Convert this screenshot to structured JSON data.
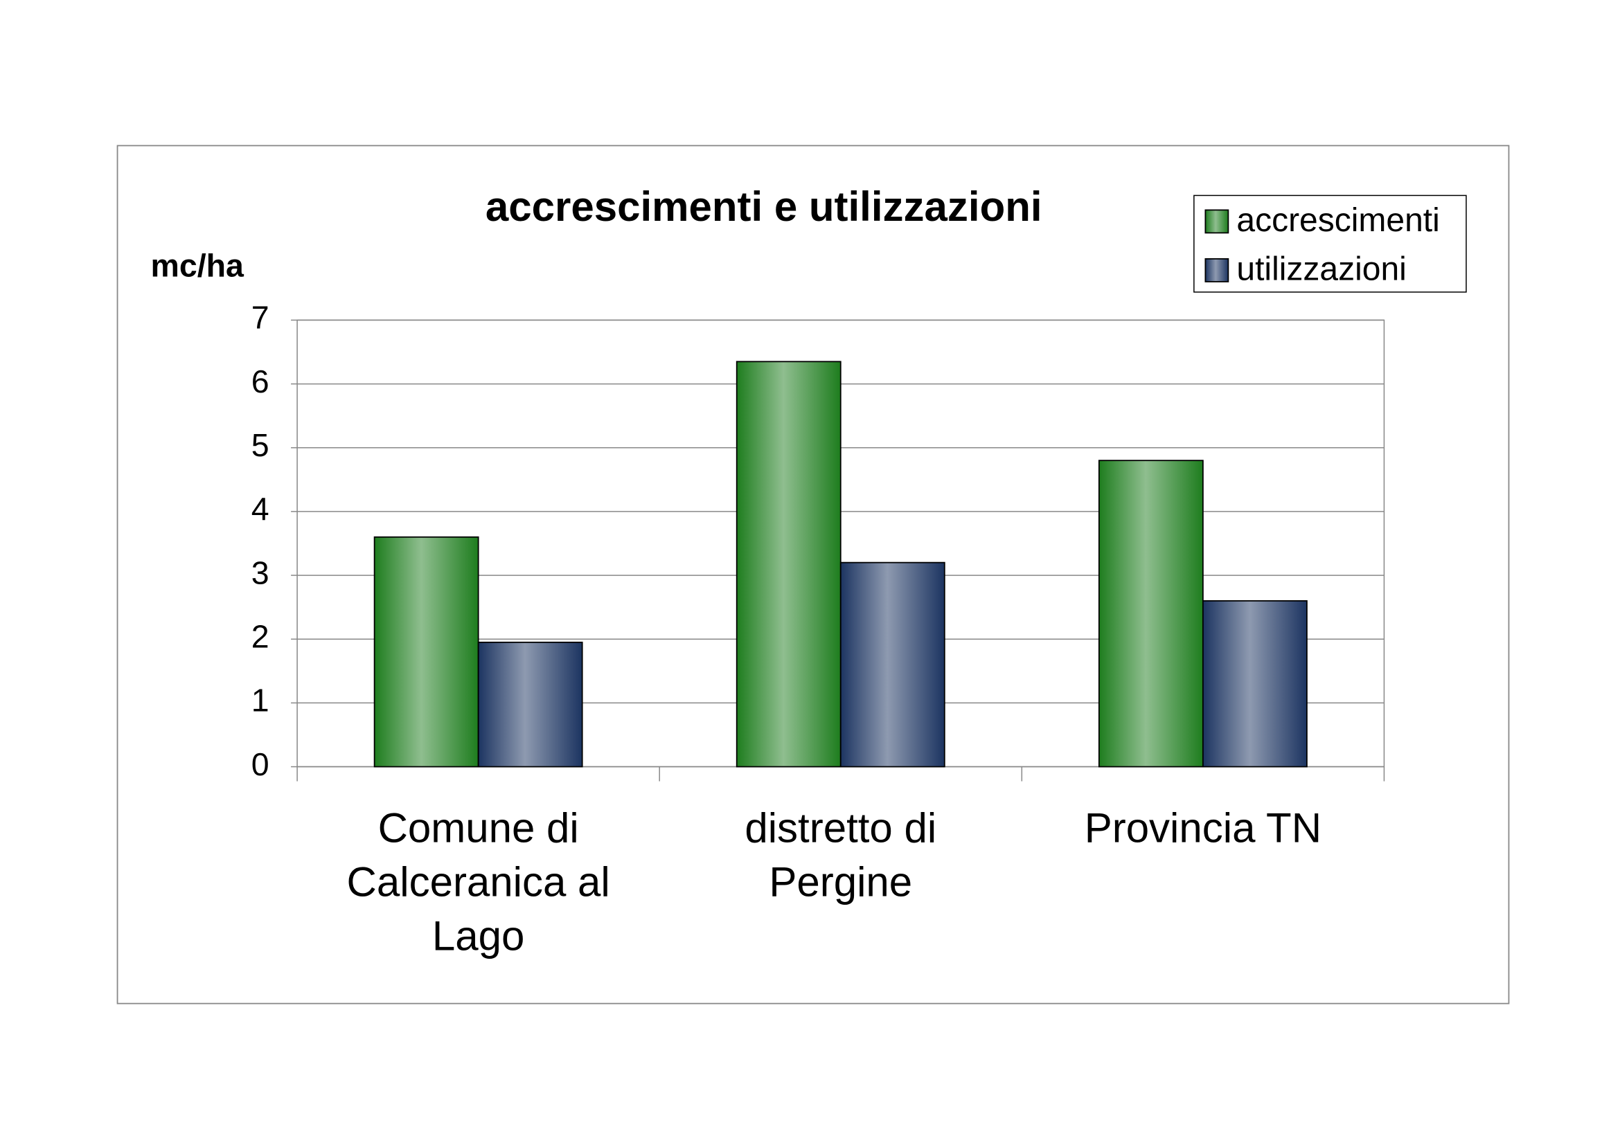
{
  "chart_data": {
    "type": "bar",
    "title": "accrescimenti e utilizzazioni",
    "y_label": "mc/ha",
    "categories": [
      "Comune di Calceranica al Lago",
      "distretto di Pergine",
      "Provincia TN"
    ],
    "series": [
      {
        "name": "accrescimenti",
        "color": "#1e7d1e",
        "values": [
          3.6,
          6.35,
          4.8
        ]
      },
      {
        "name": "utilizzazioni",
        "color": "#1c3461",
        "values": [
          1.95,
          3.2,
          2.6
        ]
      }
    ],
    "ylim": [
      0,
      7
    ],
    "yticks": [
      0,
      1,
      2,
      3,
      4,
      5,
      6,
      7
    ],
    "grid": true,
    "legend": "top-right"
  }
}
